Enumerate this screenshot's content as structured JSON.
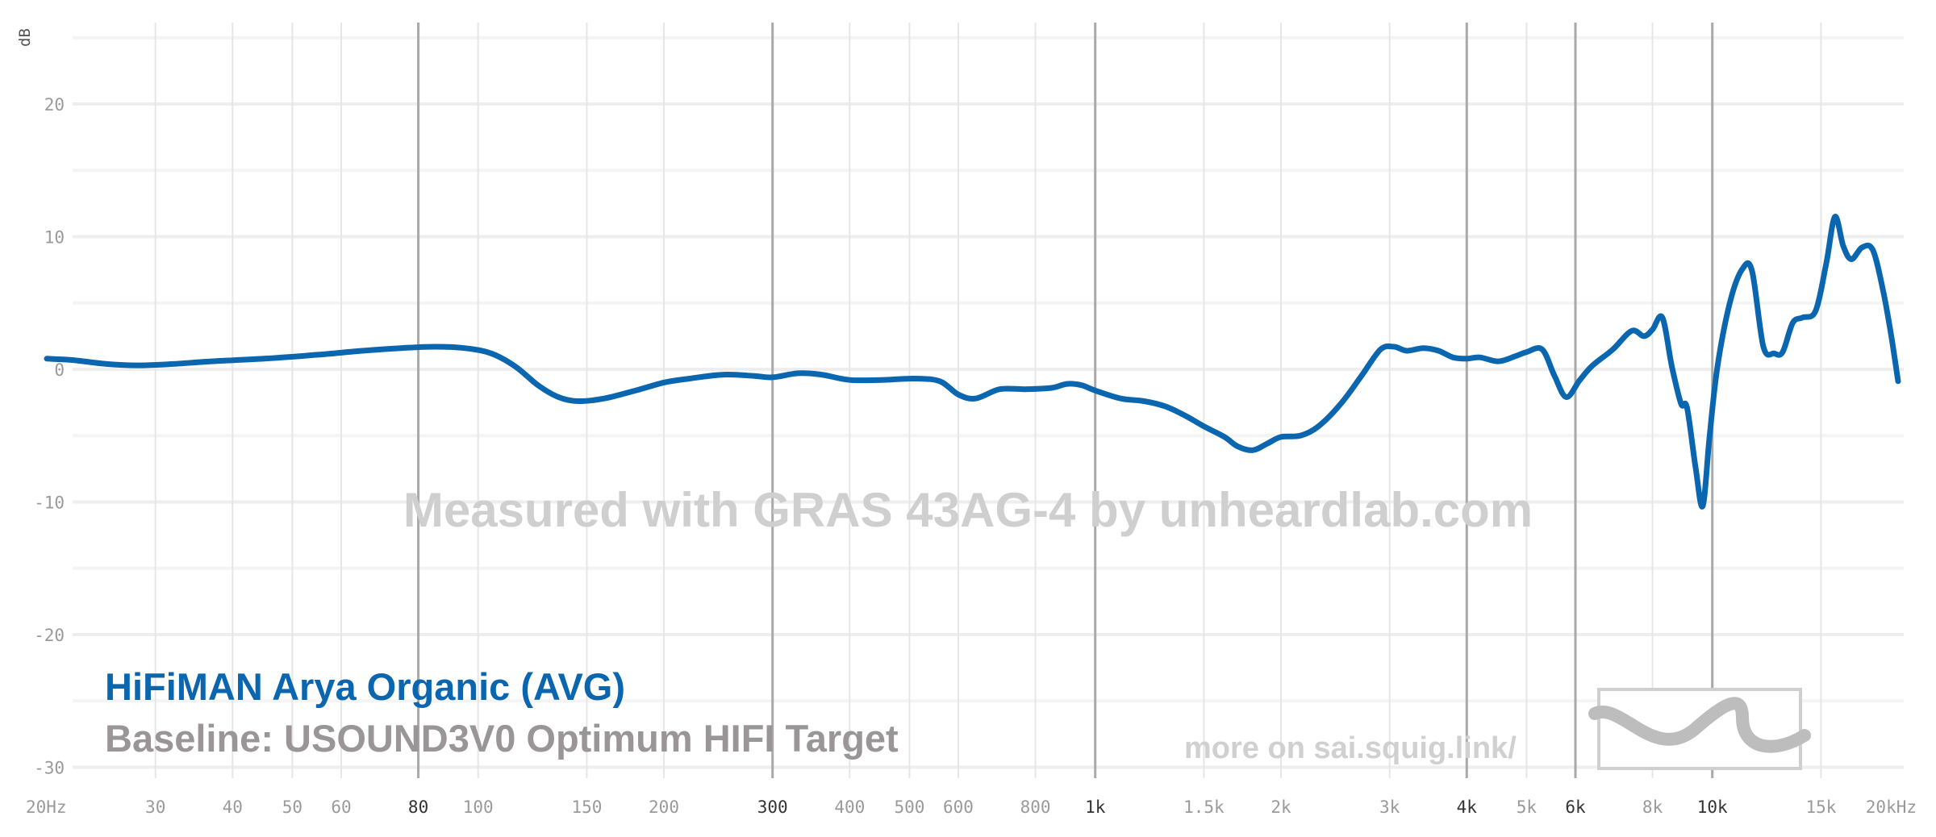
{
  "chart_data": {
    "type": "line",
    "ylabel": "dB",
    "xlabel": "",
    "xscale": "log",
    "xlim": [
      20,
      20000
    ],
    "ylim": [
      -30,
      25
    ],
    "x_ticks": [
      {
        "value": 20,
        "label": "20Hz",
        "major": false
      },
      {
        "value": 30,
        "label": "30",
        "major": false
      },
      {
        "value": 40,
        "label": "40",
        "major": false
      },
      {
        "value": 50,
        "label": "50",
        "major": false
      },
      {
        "value": 60,
        "label": "60",
        "major": false
      },
      {
        "value": 80,
        "label": "80",
        "major": true
      },
      {
        "value": 100,
        "label": "100",
        "major": false
      },
      {
        "value": 150,
        "label": "150",
        "major": false
      },
      {
        "value": 200,
        "label": "200",
        "major": false
      },
      {
        "value": 300,
        "label": "300",
        "major": true
      },
      {
        "value": 400,
        "label": "400",
        "major": false
      },
      {
        "value": 500,
        "label": "500",
        "major": false
      },
      {
        "value": 600,
        "label": "600",
        "major": false
      },
      {
        "value": 800,
        "label": "800",
        "major": false
      },
      {
        "value": 1000,
        "label": "1k",
        "major": true
      },
      {
        "value": 1500,
        "label": "1.5k",
        "major": false
      },
      {
        "value": 2000,
        "label": "2k",
        "major": false
      },
      {
        "value": 3000,
        "label": "3k",
        "major": false
      },
      {
        "value": 4000,
        "label": "4k",
        "major": true
      },
      {
        "value": 5000,
        "label": "5k",
        "major": false
      },
      {
        "value": 6000,
        "label": "6k",
        "major": true
      },
      {
        "value": 8000,
        "label": "8k",
        "major": false
      },
      {
        "value": 10000,
        "label": "10k",
        "major": true
      },
      {
        "value": 15000,
        "label": "15k",
        "major": false
      },
      {
        "value": 20000,
        "label": "20kHz",
        "major": false
      }
    ],
    "y_ticks": [
      20,
      10,
      0,
      -10,
      -20,
      -30
    ],
    "grid": true,
    "series": [
      {
        "name": "HiFiMAN Arya Organic (AVG)",
        "color": "#0b66b0",
        "points": [
          [
            20,
            0.8
          ],
          [
            22,
            0.7
          ],
          [
            25,
            0.4
          ],
          [
            28,
            0.3
          ],
          [
            32,
            0.4
          ],
          [
            37,
            0.6
          ],
          [
            45,
            0.8
          ],
          [
            55,
            1.1
          ],
          [
            65,
            1.4
          ],
          [
            75,
            1.6
          ],
          [
            85,
            1.7
          ],
          [
            95,
            1.6
          ],
          [
            105,
            1.2
          ],
          [
            115,
            0.2
          ],
          [
            125,
            -1.2
          ],
          [
            135,
            -2.1
          ],
          [
            145,
            -2.4
          ],
          [
            160,
            -2.2
          ],
          [
            180,
            -1.6
          ],
          [
            200,
            -1.0
          ],
          [
            220,
            -0.7
          ],
          [
            250,
            -0.4
          ],
          [
            280,
            -0.5
          ],
          [
            300,
            -0.6
          ],
          [
            330,
            -0.3
          ],
          [
            360,
            -0.4
          ],
          [
            400,
            -0.8
          ],
          [
            450,
            -0.8
          ],
          [
            510,
            -0.7
          ],
          [
            560,
            -0.9
          ],
          [
            600,
            -1.9
          ],
          [
            640,
            -2.2
          ],
          [
            700,
            -1.5
          ],
          [
            770,
            -1.5
          ],
          [
            850,
            -1.4
          ],
          [
            900,
            -1.1
          ],
          [
            950,
            -1.2
          ],
          [
            1000,
            -1.6
          ],
          [
            1100,
            -2.2
          ],
          [
            1200,
            -2.4
          ],
          [
            1300,
            -2.8
          ],
          [
            1400,
            -3.5
          ],
          [
            1500,
            -4.3
          ],
          [
            1620,
            -5.1
          ],
          [
            1700,
            -5.8
          ],
          [
            1800,
            -6.1
          ],
          [
            1900,
            -5.6
          ],
          [
            2000,
            -5.1
          ],
          [
            2150,
            -5.0
          ],
          [
            2300,
            -4.3
          ],
          [
            2500,
            -2.6
          ],
          [
            2700,
            -0.5
          ],
          [
            2900,
            1.5
          ],
          [
            3050,
            1.7
          ],
          [
            3200,
            1.4
          ],
          [
            3400,
            1.6
          ],
          [
            3600,
            1.4
          ],
          [
            3800,
            0.9
          ],
          [
            4000,
            0.8
          ],
          [
            4200,
            0.9
          ],
          [
            4500,
            0.6
          ],
          [
            4800,
            1.0
          ],
          [
            5000,
            1.3
          ],
          [
            5300,
            1.5
          ],
          [
            5550,
            -0.5
          ],
          [
            5800,
            -2.1
          ],
          [
            6100,
            -0.8
          ],
          [
            6400,
            0.3
          ],
          [
            6900,
            1.5
          ],
          [
            7400,
            2.9
          ],
          [
            7750,
            2.5
          ],
          [
            8000,
            3.0
          ],
          [
            8300,
            3.9
          ],
          [
            8600,
            0.2
          ],
          [
            8900,
            -2.6
          ],
          [
            9100,
            -2.9
          ],
          [
            9400,
            -7.5
          ],
          [
            9650,
            -10.3
          ],
          [
            9900,
            -5.0
          ],
          [
            10200,
            0.3
          ],
          [
            10700,
            5.2
          ],
          [
            11200,
            7.6
          ],
          [
            11600,
            7.4
          ],
          [
            12100,
            1.7
          ],
          [
            12600,
            1.2
          ],
          [
            13000,
            1.3
          ],
          [
            13500,
            3.5
          ],
          [
            14000,
            3.9
          ],
          [
            14700,
            4.4
          ],
          [
            15300,
            8.0
          ],
          [
            15800,
            11.5
          ],
          [
            16300,
            9.3
          ],
          [
            16800,
            8.3
          ],
          [
            17500,
            9.2
          ],
          [
            18200,
            9.0
          ],
          [
            18900,
            6.0
          ],
          [
            19500,
            2.5
          ],
          [
            20000,
            -0.9
          ]
        ]
      }
    ]
  },
  "watermark": "Measured with GRAS 43AG-4 by unheardlab.com",
  "legend": {
    "main": "HiFiMAN Arya Organic (AVG)",
    "baseline": "Baseline: USOUND3V0 Optimum HIFI Target"
  },
  "more_link": "more on sai.squig.link/",
  "logo_icon": "squiggle-logo-icon"
}
